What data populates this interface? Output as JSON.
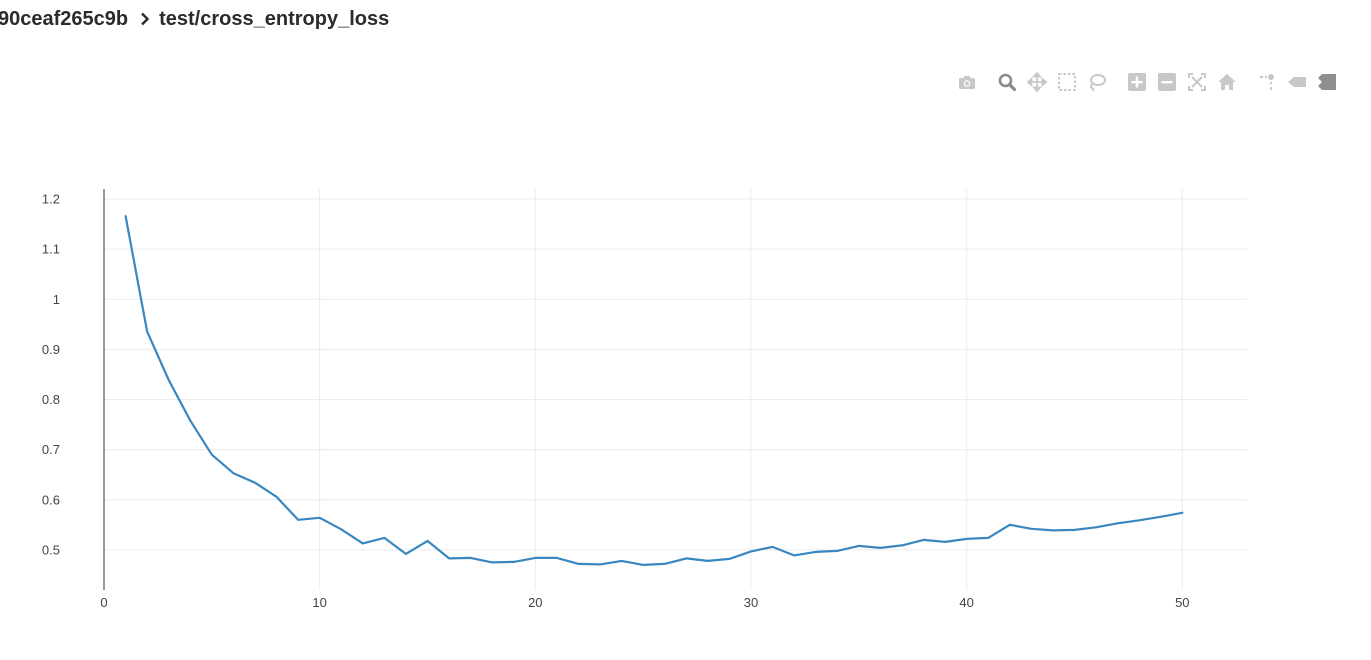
{
  "header": {
    "run_id": "90ceaf265c9b",
    "metric": "test/cross_entropy_loss"
  },
  "modebar": [
    {
      "name": "download-plot-icon",
      "tooltip": "Download plot as a png"
    },
    {
      "name": "zoom-icon",
      "tooltip": "Zoom",
      "active": true
    },
    {
      "name": "pan-icon",
      "tooltip": "Pan"
    },
    {
      "name": "box-select-icon",
      "tooltip": "Box Select"
    },
    {
      "name": "lasso-select-icon",
      "tooltip": "Lasso Select"
    },
    {
      "name": "zoom-in-icon",
      "tooltip": "Zoom in"
    },
    {
      "name": "zoom-out-icon",
      "tooltip": "Zoom out"
    },
    {
      "name": "autoscale-icon",
      "tooltip": "Autoscale"
    },
    {
      "name": "reset-axes-icon",
      "tooltip": "Reset axes"
    },
    {
      "name": "spike-lines-icon",
      "tooltip": "Toggle Spike Lines"
    },
    {
      "name": "hover-closest-icon",
      "tooltip": "Show closest data on hover"
    },
    {
      "name": "hover-compare-icon",
      "tooltip": "Compare data on hover"
    }
  ],
  "colors": {
    "line": "#3a87c0",
    "grid": "#ececec",
    "axis": "#333333",
    "icon": "#c8c8c8",
    "icon_active": "#8a8a8a"
  },
  "chart_data": {
    "type": "line",
    "title": "",
    "xlabel": "",
    "ylabel": "",
    "xlim": [
      0,
      53
    ],
    "ylim": [
      0.42,
      1.22
    ],
    "xticks": [
      0,
      10,
      20,
      30,
      40,
      50
    ],
    "xtick_labels": [
      "0",
      "10",
      "20",
      "30",
      "40",
      "50"
    ],
    "yticks": [
      0.5,
      0.6,
      0.7,
      0.8,
      0.9,
      1.0,
      1.1,
      1.2
    ],
    "ytick_labels": [
      "0.5",
      "0.6",
      "0.7",
      "0.8",
      "0.9",
      "1",
      "1.1",
      "1.2"
    ],
    "grid": true,
    "series": [
      {
        "x": [
          1,
          2,
          3,
          4,
          5,
          6,
          7,
          8,
          9,
          10,
          11,
          12,
          13,
          14,
          15,
          16,
          17,
          18,
          19,
          20,
          21,
          22,
          23,
          24,
          25,
          26,
          27,
          28,
          29,
          30,
          31,
          32,
          33,
          34,
          35,
          36,
          37,
          38,
          39,
          40,
          41,
          42,
          43,
          44,
          45,
          46,
          47,
          48,
          49,
          50
        ],
        "y": [
          1.166,
          0.936,
          0.839,
          0.758,
          0.69,
          0.653,
          0.634,
          0.606,
          0.56,
          0.564,
          0.541,
          0.513,
          0.524,
          0.492,
          0.518,
          0.483,
          0.484,
          0.475,
          0.476,
          0.484,
          0.484,
          0.472,
          0.471,
          0.478,
          0.47,
          0.472,
          0.483,
          0.478,
          0.482,
          0.497,
          0.506,
          0.489,
          0.496,
          0.498,
          0.508,
          0.504,
          0.509,
          0.52,
          0.516,
          0.522,
          0.524,
          0.55,
          0.542,
          0.539,
          0.54,
          0.545,
          0.553,
          0.559,
          0.566,
          0.574
        ]
      }
    ]
  }
}
